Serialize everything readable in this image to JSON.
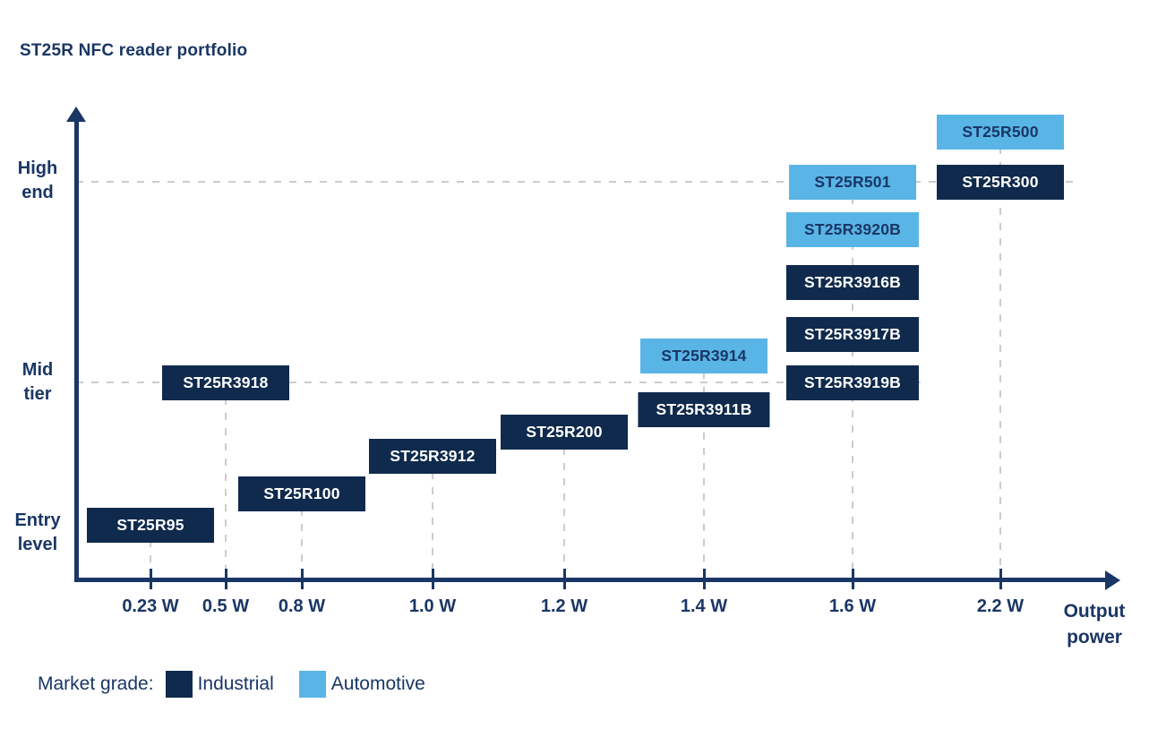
{
  "title": "ST25R NFC reader portfolio",
  "colors": {
    "industrial": "#0f2a4c",
    "automotive": "#58b5e6",
    "text_navy": "#1a3665",
    "grid_gray": "#cccccc",
    "box_text_on_industrial": "#ffffff",
    "box_text_on_automotive": "#1a3665"
  },
  "chart_data": {
    "type": "scatter",
    "title": "ST25R NFC reader portfolio",
    "xlabel": "Output power",
    "x_unit": "W",
    "x_ticks": [
      {
        "label": "0.23 W",
        "watts": 0.23
      },
      {
        "label": "0.5 W",
        "watts": 0.5
      },
      {
        "label": "0.8 W",
        "watts": 0.8
      },
      {
        "label": "1.0 W",
        "watts": 1.0
      },
      {
        "label": "1.2 W",
        "watts": 1.2
      },
      {
        "label": "1.4 W",
        "watts": 1.4
      },
      {
        "label": "1.6 W",
        "watts": 1.6
      },
      {
        "label": "2.2 W",
        "watts": 2.2
      }
    ],
    "y_tiers": [
      {
        "id": "entry",
        "label": "Entry level",
        "level": 0
      },
      {
        "id": "mid",
        "label": "Mid tier",
        "level": 1
      },
      {
        "id": "high",
        "label": "High end",
        "level": 2
      }
    ],
    "gridlines": {
      "style": "dashed",
      "horizontal_at_tiers": [
        "high",
        "mid"
      ],
      "vertical_at_every_x_tick": true
    },
    "legend": {
      "title": "Market grade:",
      "entries": [
        {
          "label": "Industrial",
          "grade": "industrial"
        },
        {
          "label": "Automotive",
          "grade": "automotive"
        }
      ]
    },
    "points": [
      {
        "label": "ST25R95",
        "watts": 0.23,
        "tier_level": 0.0,
        "grade": "industrial"
      },
      {
        "label": "ST25R3918",
        "watts": 0.5,
        "tier_level": 1.0,
        "grade": "industrial"
      },
      {
        "label": "ST25R100",
        "watts": 0.8,
        "tier_level": 0.22,
        "grade": "industrial"
      },
      {
        "label": "ST25R3912",
        "watts": 1.0,
        "tier_level": 0.48,
        "grade": "industrial"
      },
      {
        "label": "ST25R200",
        "watts": 1.2,
        "tier_level": 0.65,
        "grade": "industrial"
      },
      {
        "label": "ST25R3911B",
        "watts": 1.4,
        "tier_level": 0.81,
        "grade": "industrial"
      },
      {
        "label": "ST25R3914",
        "watts": 1.4,
        "tier_level": 1.13,
        "grade": "automotive"
      },
      {
        "label": "ST25R3919B",
        "watts": 1.6,
        "tier_level": 1.0,
        "grade": "industrial"
      },
      {
        "label": "ST25R3917B",
        "watts": 1.6,
        "tier_level": 1.24,
        "grade": "industrial"
      },
      {
        "label": "ST25R3916B",
        "watts": 1.6,
        "tier_level": 1.5,
        "grade": "industrial"
      },
      {
        "label": "ST25R3920B",
        "watts": 1.6,
        "tier_level": 1.76,
        "grade": "automotive"
      },
      {
        "label": "ST25R501",
        "watts": 1.6,
        "tier_level": 2.0,
        "grade": "automotive"
      },
      {
        "label": "ST25R300",
        "watts": 2.2,
        "tier_level": 2.0,
        "grade": "industrial"
      },
      {
        "label": "ST25R500",
        "watts": 2.2,
        "tier_level": 2.25,
        "grade": "automotive"
      }
    ]
  }
}
